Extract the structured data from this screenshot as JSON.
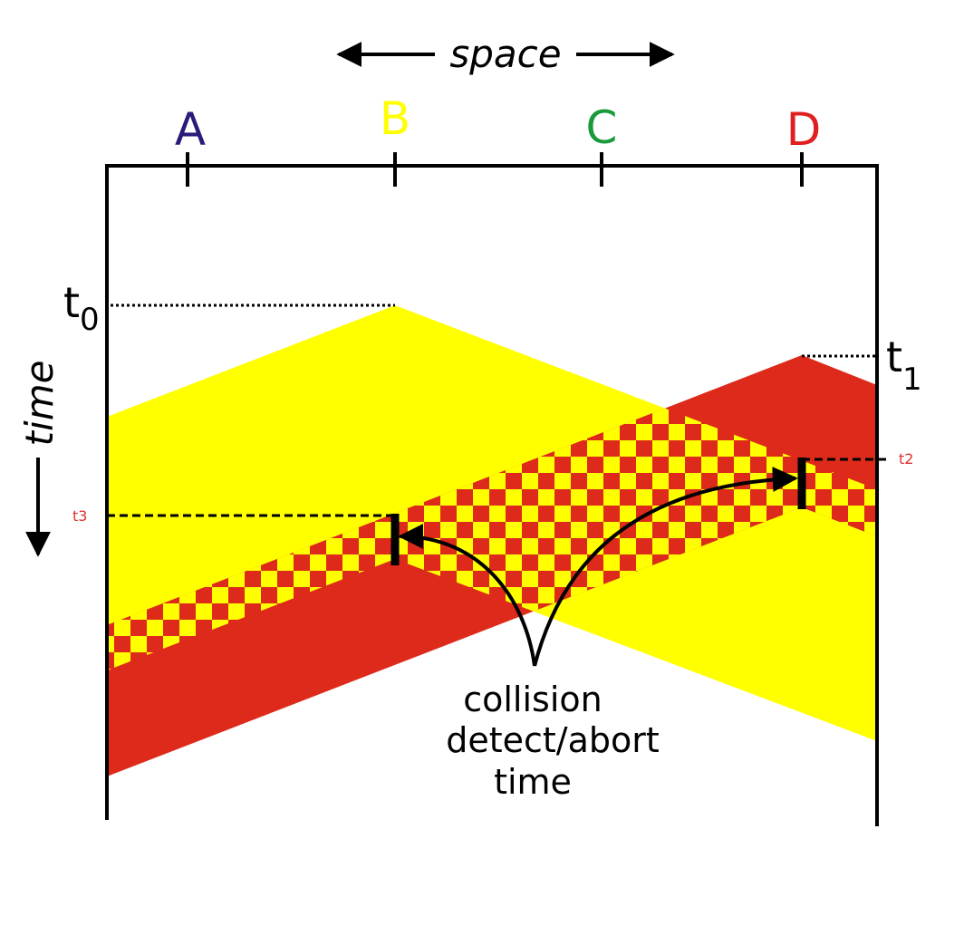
{
  "header": {
    "space": "space",
    "time": "time"
  },
  "stations": [
    {
      "label": "A"
    },
    {
      "label": "B"
    },
    {
      "label": "C"
    },
    {
      "label": "D"
    }
  ],
  "times": {
    "t0": {
      "base": "t",
      "sub": "0"
    },
    "t1": {
      "base": "t",
      "sub": "1"
    },
    "t2": "t2",
    "t3": "t3"
  },
  "annotation": {
    "lines": [
      "collision",
      "detect/abort",
      "time"
    ]
  }
}
